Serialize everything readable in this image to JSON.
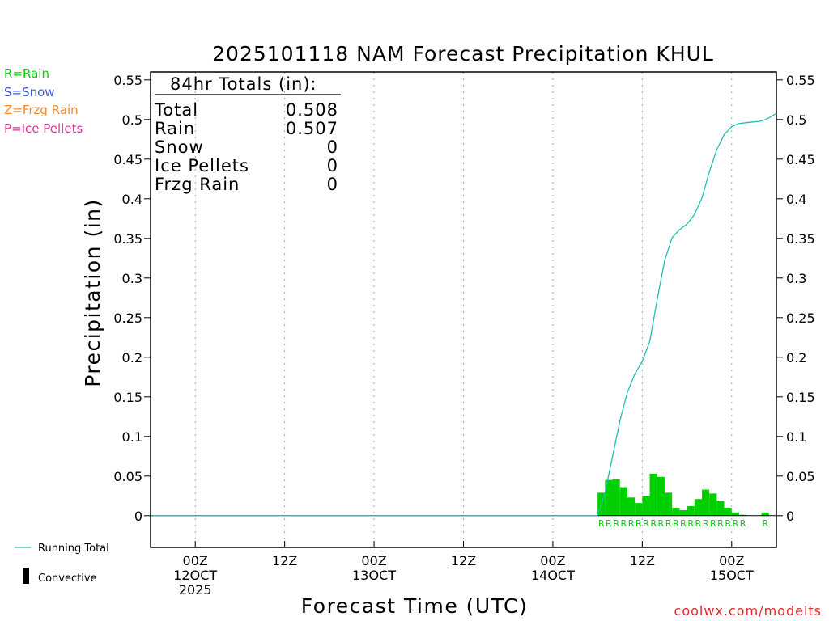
{
  "chart_data": {
    "type": "bar",
    "title": "2025101118 NAM Forecast Precipitation KHUL",
    "xlabel": "Forecast Time (UTC)",
    "ylabel": "Precipitation (in)",
    "ylim": [
      -0.04,
      0.56
    ],
    "yticks": [
      0,
      0.05,
      0.1,
      0.15,
      0.2,
      0.25,
      0.3,
      0.35,
      0.4,
      0.45,
      0.5,
      0.55
    ],
    "ytick_labels": [
      "0",
      "0.05",
      "0.1",
      "0.15",
      "0.2",
      "0.25",
      "0.3",
      "0.35",
      "0.4",
      "0.45",
      "0.5",
      "0.55"
    ],
    "xlim": [
      -6,
      78
    ],
    "xticks": [
      {
        "hour": 0,
        "lines": [
          "00Z",
          "12OCT",
          "2025"
        ]
      },
      {
        "hour": 12,
        "lines": [
          "12Z"
        ]
      },
      {
        "hour": 24,
        "lines": [
          "00Z",
          "13OCT"
        ]
      },
      {
        "hour": 36,
        "lines": [
          "12Z"
        ]
      },
      {
        "hour": 48,
        "lines": [
          "00Z",
          "14OCT"
        ]
      },
      {
        "hour": 60,
        "lines": [
          "12Z"
        ]
      },
      {
        "hour": 72,
        "lines": [
          "00Z",
          "15OCT"
        ]
      }
    ],
    "bar_hours": [
      55,
      56,
      57,
      58,
      59,
      60,
      61,
      62,
      63,
      64,
      65,
      66,
      67,
      68,
      69,
      70,
      71,
      72,
      73,
      74,
      77
    ],
    "bar_values": [
      0.029,
      0.045,
      0.046,
      0.036,
      0.023,
      0.016,
      0.025,
      0.053,
      0.049,
      0.029,
      0.01,
      0.007,
      0.012,
      0.021,
      0.033,
      0.028,
      0.019,
      0.01,
      0.004,
      0.001,
      0.004
    ],
    "bar_types": [
      "R",
      "R",
      "R",
      "R",
      "R",
      "R",
      "R",
      "R",
      "R",
      "R",
      "R",
      "R",
      "R",
      "R",
      "R",
      "R",
      "R",
      "R",
      "R",
      "R",
      "R"
    ],
    "series": [
      {
        "name": "Running Total",
        "color": "#20c0b0",
        "x": [
          -6,
          54,
          55,
          56,
          57,
          58,
          59,
          60,
          61,
          62,
          63,
          64,
          65,
          66,
          67,
          68,
          69,
          70,
          71,
          72,
          73,
          74,
          75,
          76,
          77,
          78
        ],
        "values": [
          0,
          0,
          0.029,
          0.074,
          0.12,
          0.156,
          0.179,
          0.195,
          0.22,
          0.273,
          0.322,
          0.351,
          0.361,
          0.368,
          0.38,
          0.401,
          0.434,
          0.462,
          0.481,
          0.491,
          0.495,
          0.496,
          0.497,
          0.498,
          0.502,
          0.508
        ]
      },
      {
        "name": "Convective",
        "color": "#000000",
        "values": []
      }
    ]
  },
  "totals_box": {
    "heading": "84hr Totals (in):",
    "rows": [
      {
        "label": "Total",
        "value": "0.508"
      },
      {
        "label": "Rain",
        "value": "0.507"
      },
      {
        "label": "Snow",
        "value": "0"
      },
      {
        "label": "Ice Pellets",
        "value": "0"
      },
      {
        "label": "Frzg Rain",
        "value": "0"
      }
    ]
  },
  "type_legend": [
    {
      "text": "R=Rain",
      "color": "#00d000"
    },
    {
      "text": "S=Snow",
      "color": "#3a5ae0"
    },
    {
      "text": "Z=Frzg Rain",
      "color": "#f08a30"
    },
    {
      "text": "P=Ice Pellets",
      "color": "#e0309a"
    }
  ],
  "line_legend": [
    {
      "text": "Running Total"
    },
    {
      "text": "Convective"
    }
  ],
  "colors": {
    "bar": "#00d000",
    "rain_letter": "#00d000",
    "running_total": "#20c0b0",
    "credit": "#e02828",
    "grid": "#a0a0a0"
  },
  "credit": "coolwx.com/modelts"
}
